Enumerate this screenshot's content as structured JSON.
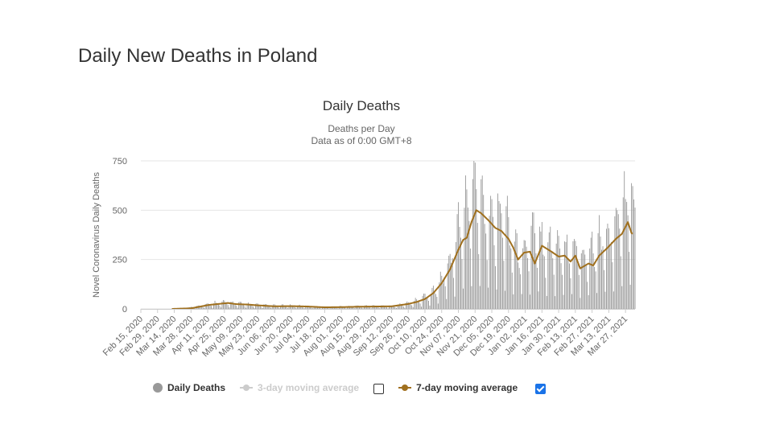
{
  "page": {
    "title": "Daily New Deaths in Poland"
  },
  "chart_data": {
    "type": "bar",
    "title": "Daily Deaths",
    "subtitle_line1": "Deaths per Day",
    "subtitle_line2": "Data as of 0:00 GMT+8",
    "ylabel": "Novel Coronavirus Daily Deaths",
    "xlabel": "",
    "ylim": [
      0,
      750
    ],
    "yticks": [
      0,
      250,
      500,
      750
    ],
    "grid": true,
    "x_start": "2020-02-15",
    "x_end": "2021-04-04",
    "xtick_labels": [
      "Feb 15, 2020",
      "Feb 29, 2020",
      "Mar 14, 2020",
      "Mar 28, 2020",
      "Apr 11, 2020",
      "Apr 25, 2020",
      "May 09, 2020",
      "May 23, 2020",
      "Jun 06, 2020",
      "Jun 20, 2020",
      "Jul 04, 2020",
      "Jul 18, 2020",
      "Aug 01, 2020",
      "Aug 15, 2020",
      "Aug 29, 2020",
      "Sep 12, 2020",
      "Sep 26, 2020",
      "Oct 10, 2020",
      "Oct 24, 2020",
      "Nov 07, 2020",
      "Nov 21, 2020",
      "Dec 05, 2020",
      "Dec 19, 2020",
      "Jan 02, 2021",
      "Jan 16, 2021",
      "Jan 30, 2021",
      "Feb 13, 2021",
      "Feb 27, 2021",
      "Mar 13, 2021",
      "Mar 27, 2021"
    ],
    "legend_placement": "bottom",
    "series": [
      {
        "name": "Daily Deaths",
        "kind": "bar",
        "color": "#999999",
        "visible": true,
        "anchors": [
          [
            "2020-02-15",
            0
          ],
          [
            "2020-03-12",
            0
          ],
          [
            "2020-03-25",
            5
          ],
          [
            "2020-04-05",
            15
          ],
          [
            "2020-04-15",
            25
          ],
          [
            "2020-04-25",
            30
          ],
          [
            "2020-05-05",
            25
          ],
          [
            "2020-05-20",
            18
          ],
          [
            "2020-06-06",
            15
          ],
          [
            "2020-06-20",
            15
          ],
          [
            "2020-07-04",
            12
          ],
          [
            "2020-07-18",
            8
          ],
          [
            "2020-08-01",
            10
          ],
          [
            "2020-08-15",
            12
          ],
          [
            "2020-08-29",
            13
          ],
          [
            "2020-09-12",
            12
          ],
          [
            "2020-09-26",
            25
          ],
          [
            "2020-10-05",
            40
          ],
          [
            "2020-10-15",
            70
          ],
          [
            "2020-10-24",
            130
          ],
          [
            "2020-11-01",
            230
          ],
          [
            "2020-11-07",
            350
          ],
          [
            "2020-11-14",
            480
          ],
          [
            "2020-11-21",
            530
          ],
          [
            "2020-11-28",
            450
          ],
          [
            "2020-12-05",
            420
          ],
          [
            "2020-12-12",
            420
          ],
          [
            "2020-12-19",
            370
          ],
          [
            "2020-12-26",
            250
          ],
          [
            "2021-01-02",
            280
          ],
          [
            "2021-01-09",
            330
          ],
          [
            "2021-01-16",
            310
          ],
          [
            "2021-01-23",
            280
          ],
          [
            "2021-01-30",
            290
          ],
          [
            "2021-02-06",
            260
          ],
          [
            "2021-02-13",
            280
          ],
          [
            "2021-02-20",
            230
          ],
          [
            "2021-02-27",
            260
          ],
          [
            "2021-03-06",
            300
          ],
          [
            "2021-03-13",
            330
          ],
          [
            "2021-03-20",
            400
          ],
          [
            "2021-03-27",
            480
          ],
          [
            "2021-04-04",
            460
          ]
        ]
      },
      {
        "name": "3-day moving average",
        "kind": "line",
        "color": "#cccccc",
        "visible": false
      },
      {
        "name": "7-day moving average",
        "kind": "line",
        "color": "#a0701e",
        "visible": true,
        "anchors": [
          [
            "2020-02-15",
            0
          ],
          [
            "2020-03-12",
            0
          ],
          [
            "2020-03-28",
            3
          ],
          [
            "2020-04-05",
            12
          ],
          [
            "2020-04-12",
            20
          ],
          [
            "2020-04-20",
            25
          ],
          [
            "2020-04-28",
            30
          ],
          [
            "2020-05-05",
            24
          ],
          [
            "2020-05-15",
            22
          ],
          [
            "2020-05-23",
            18
          ],
          [
            "2020-06-06",
            13
          ],
          [
            "2020-06-20",
            14
          ],
          [
            "2020-07-04",
            12
          ],
          [
            "2020-07-18",
            8
          ],
          [
            "2020-08-01",
            9
          ],
          [
            "2020-08-15",
            11
          ],
          [
            "2020-08-29",
            12
          ],
          [
            "2020-09-12",
            13
          ],
          [
            "2020-09-26",
            25
          ],
          [
            "2020-10-03",
            35
          ],
          [
            "2020-10-10",
            50
          ],
          [
            "2020-10-17",
            80
          ],
          [
            "2020-10-24",
            130
          ],
          [
            "2020-10-31",
            200
          ],
          [
            "2020-11-07",
            300
          ],
          [
            "2020-11-11",
            350
          ],
          [
            "2020-11-14",
            360
          ],
          [
            "2020-11-18",
            440
          ],
          [
            "2020-11-22",
            500
          ],
          [
            "2020-11-26",
            485
          ],
          [
            "2020-12-02",
            450
          ],
          [
            "2020-12-08",
            410
          ],
          [
            "2020-12-13",
            395
          ],
          [
            "2020-12-19",
            355
          ],
          [
            "2020-12-23",
            310
          ],
          [
            "2020-12-27",
            250
          ],
          [
            "2021-01-01",
            285
          ],
          [
            "2021-01-06",
            290
          ],
          [
            "2021-01-10",
            230
          ],
          [
            "2021-01-16",
            320
          ],
          [
            "2021-01-24",
            290
          ],
          [
            "2021-01-30",
            265
          ],
          [
            "2021-02-04",
            270
          ],
          [
            "2021-02-09",
            240
          ],
          [
            "2021-02-13",
            270
          ],
          [
            "2021-02-17",
            205
          ],
          [
            "2021-02-24",
            230
          ],
          [
            "2021-02-28",
            220
          ],
          [
            "2021-03-05",
            270
          ],
          [
            "2021-03-12",
            310
          ],
          [
            "2021-03-19",
            355
          ],
          [
            "2021-03-24",
            380
          ],
          [
            "2021-03-29",
            440
          ],
          [
            "2021-04-01",
            385
          ],
          [
            "2021-04-02",
            380
          ]
        ]
      }
    ]
  },
  "legend": {
    "daily": "Daily Deaths",
    "ma3": "3-day moving average",
    "ma7": "7-day moving average",
    "ma3_checked": false,
    "ma7_checked": true
  }
}
